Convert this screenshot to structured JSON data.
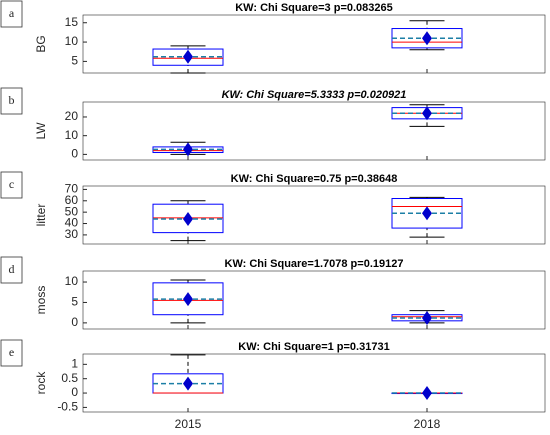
{
  "chart_data": [
    {
      "type": "box",
      "label": "a",
      "title": "KW: Chi Square=3 p=0.083265",
      "ylabel": "BG",
      "ylim": [
        2,
        17
      ],
      "yticks": [
        5,
        10,
        15
      ],
      "box_color": "#0000ff",
      "median_color": "#ff0000",
      "mean_color": "#0000cc",
      "mean_line_color": "#1c7fa6",
      "boxes": [
        {
          "min": 2,
          "q1": 4,
          "median": 5.8,
          "mean": 6.2,
          "q3": 8.2,
          "max": 9
        },
        {
          "min": 8,
          "q1": 8.5,
          "median": 10,
          "mean": 11,
          "q3": 13.5,
          "max": 15.5
        }
      ]
    },
    {
      "type": "box",
      "label": "b",
      "title": "KW: Chi Square=5.3333 p=0.020921",
      "title_italic": true,
      "ylabel": "LW",
      "ylim": [
        -3,
        28
      ],
      "yticks": [
        0,
        10,
        20
      ],
      "box_color": "#0000ff",
      "median_color": "#ff0000",
      "mean_color": "#0000cc",
      "mean_line_color": "#1c7fa6",
      "boxes": [
        {
          "min": 0,
          "q1": 1,
          "median": 2,
          "mean": 2.7,
          "q3": 4,
          "max": 6.5
        },
        {
          "min": 15,
          "q1": 19,
          "median": 22,
          "mean": 22,
          "q3": 25,
          "max": 26.5
        }
      ]
    },
    {
      "type": "box",
      "label": "c",
      "title": "KW: Chi Square=0.75 p=0.38648",
      "ylabel": "litter",
      "ylim": [
        22,
        73
      ],
      "yticks": [
        30,
        40,
        50,
        60,
        70
      ],
      "box_color": "#0000ff",
      "median_color": "#ff0000",
      "mean_color": "#0000cc",
      "mean_line_color": "#1c7fa6",
      "boxes": [
        {
          "min": 25,
          "q1": 32,
          "median": 45,
          "mean": 44,
          "q3": 57,
          "max": 60
        },
        {
          "min": 28,
          "q1": 36,
          "median": 55,
          "mean": 49,
          "q3": 62,
          "max": 63
        }
      ]
    },
    {
      "type": "box",
      "label": "d",
      "title": "KW: Chi Square=1.7078 p=0.19127",
      "ylabel": "moss",
      "ylim": [
        -1.5,
        12.7
      ],
      "yticks": [
        0,
        5,
        10
      ],
      "box_color": "#0000ff",
      "median_color": "#ff0000",
      "mean_color": "#0000cc",
      "mean_line_color": "#1c7fa6",
      "boxes": [
        {
          "min": 0,
          "q1": 2,
          "median": 5.5,
          "mean": 5.8,
          "q3": 9.8,
          "max": 10.5
        },
        {
          "min": 0,
          "q1": 0.5,
          "median": 1.5,
          "mean": 1.2,
          "q3": 2,
          "max": 3
        }
      ]
    },
    {
      "type": "box",
      "label": "e",
      "title": "KW: Chi Square=1 p=0.31731",
      "ylabel": "rock",
      "ylim": [
        -0.66,
        1.36
      ],
      "yticks": [
        -0.5,
        0,
        0.5,
        1
      ],
      "box_color": "#0000ff",
      "median_color": "#ff0000",
      "mean_color": "#0000cc",
      "mean_line_color": "#1c7fa6",
      "categories": [
        "2015",
        "2018"
      ],
      "boxes": [
        {
          "min": 0,
          "q1": 0,
          "median": 0,
          "mean": 0.33,
          "q3": 0.67,
          "max": 1.33
        },
        {
          "min": 0,
          "q1": 0,
          "median": 0,
          "mean": 0,
          "q3": 0,
          "max": 0
        }
      ]
    }
  ]
}
